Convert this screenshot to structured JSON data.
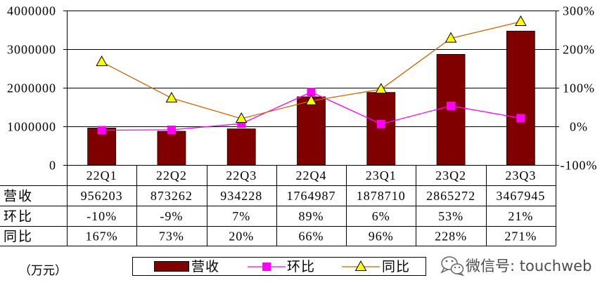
{
  "chart_data": {
    "type": "bar",
    "categories": [
      "22Q1",
      "22Q2",
      "22Q3",
      "22Q4",
      "23Q1",
      "23Q2",
      "23Q3"
    ],
    "series": [
      {
        "name": "营收",
        "type": "bar",
        "axis": "left",
        "values": [
          956203,
          873262,
          934228,
          1764987,
          1878710,
          2865272,
          3467945
        ],
        "color": "#800000"
      },
      {
        "name": "环比",
        "type": "line",
        "axis": "right",
        "values": [
          -10,
          -9,
          7,
          89,
          6,
          53,
          21
        ],
        "color": "#FF00FF",
        "marker": "square",
        "marker_color": "#FF00FF"
      },
      {
        "name": "同比",
        "type": "line",
        "axis": "right",
        "values": [
          167,
          73,
          20,
          66,
          96,
          228,
          271
        ],
        "color": "#CC6600",
        "marker": "triangle",
        "marker_color": "#FFFF00"
      }
    ],
    "y_left": {
      "ylim": [
        0,
        4000000
      ],
      "ticks": [
        4000000,
        3000000,
        2000000,
        1000000,
        0
      ],
      "tick_labels": [
        "4000000",
        "3000000",
        "2000000",
        "1000000",
        "0"
      ]
    },
    "y_right": {
      "ylim": [
        -100,
        300
      ],
      "ticks": [
        300,
        200,
        100,
        0,
        -100
      ],
      "tick_labels": [
        "300%",
        "200%",
        "100%",
        "0%",
        "-100%"
      ]
    },
    "unit_label": "（万元）",
    "grid": true,
    "legend": "bottom",
    "table": {
      "rows": [
        {
          "label": "营收",
          "cells": [
            "956203",
            "873262",
            "934228",
            "1764987",
            "1878710",
            "2865272",
            "3467945"
          ]
        },
        {
          "label": "环比",
          "cells": [
            "-10%",
            "-9%",
            "7%",
            "89%",
            "6%",
            "53%",
            "21%"
          ]
        },
        {
          "label": "同比",
          "cells": [
            "167%",
            "73%",
            "20%",
            "66%",
            "96%",
            "228%",
            "271%"
          ]
        }
      ]
    }
  },
  "watermark": {
    "icon": "wechat-icon",
    "text": "微信号: touchweb"
  }
}
